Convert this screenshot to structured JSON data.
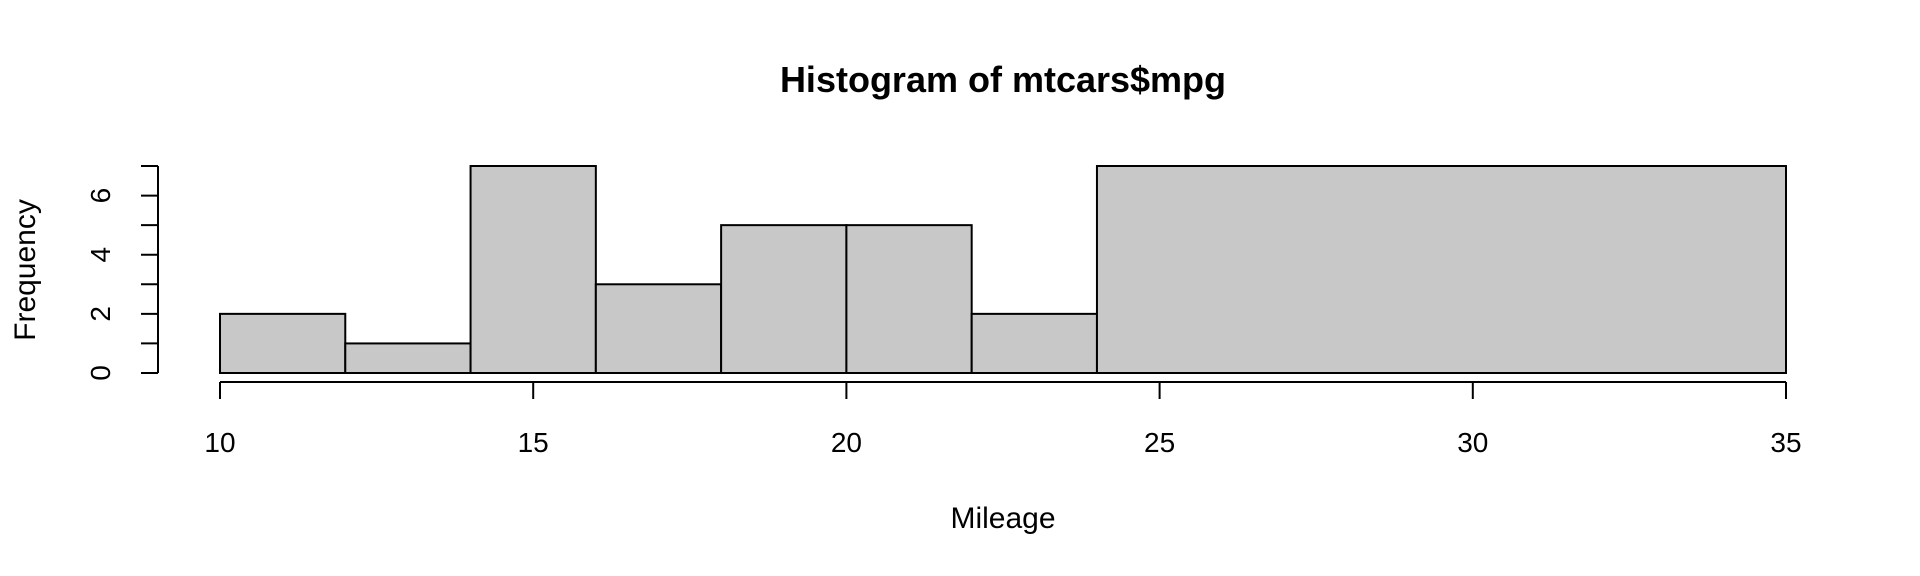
{
  "chart_data": {
    "type": "bar",
    "title": "Histogram of mtcars$mpg",
    "xlabel": "Mileage",
    "ylabel": "Frequency",
    "bins": [
      {
        "from": 10,
        "to": 12,
        "count": 2
      },
      {
        "from": 12,
        "to": 14,
        "count": 1
      },
      {
        "from": 14,
        "to": 16,
        "count": 7
      },
      {
        "from": 16,
        "to": 18,
        "count": 3
      },
      {
        "from": 18,
        "to": 20,
        "count": 5
      },
      {
        "from": 20,
        "to": 22,
        "count": 5
      },
      {
        "from": 22,
        "to": 24,
        "count": 2
      },
      {
        "from": 24,
        "to": 35,
        "count": 7
      }
    ],
    "xlim": [
      10,
      35
    ],
    "ylim": [
      0,
      7
    ],
    "x_ticks": [
      10,
      15,
      20,
      25,
      30,
      35
    ],
    "y_ticks_labeled": [
      0,
      2,
      4,
      6
    ],
    "y_ticks_minor": [
      1,
      3,
      5,
      7
    ],
    "bar_color": "#c8c8c8",
    "grid": false,
    "legend": "none"
  }
}
